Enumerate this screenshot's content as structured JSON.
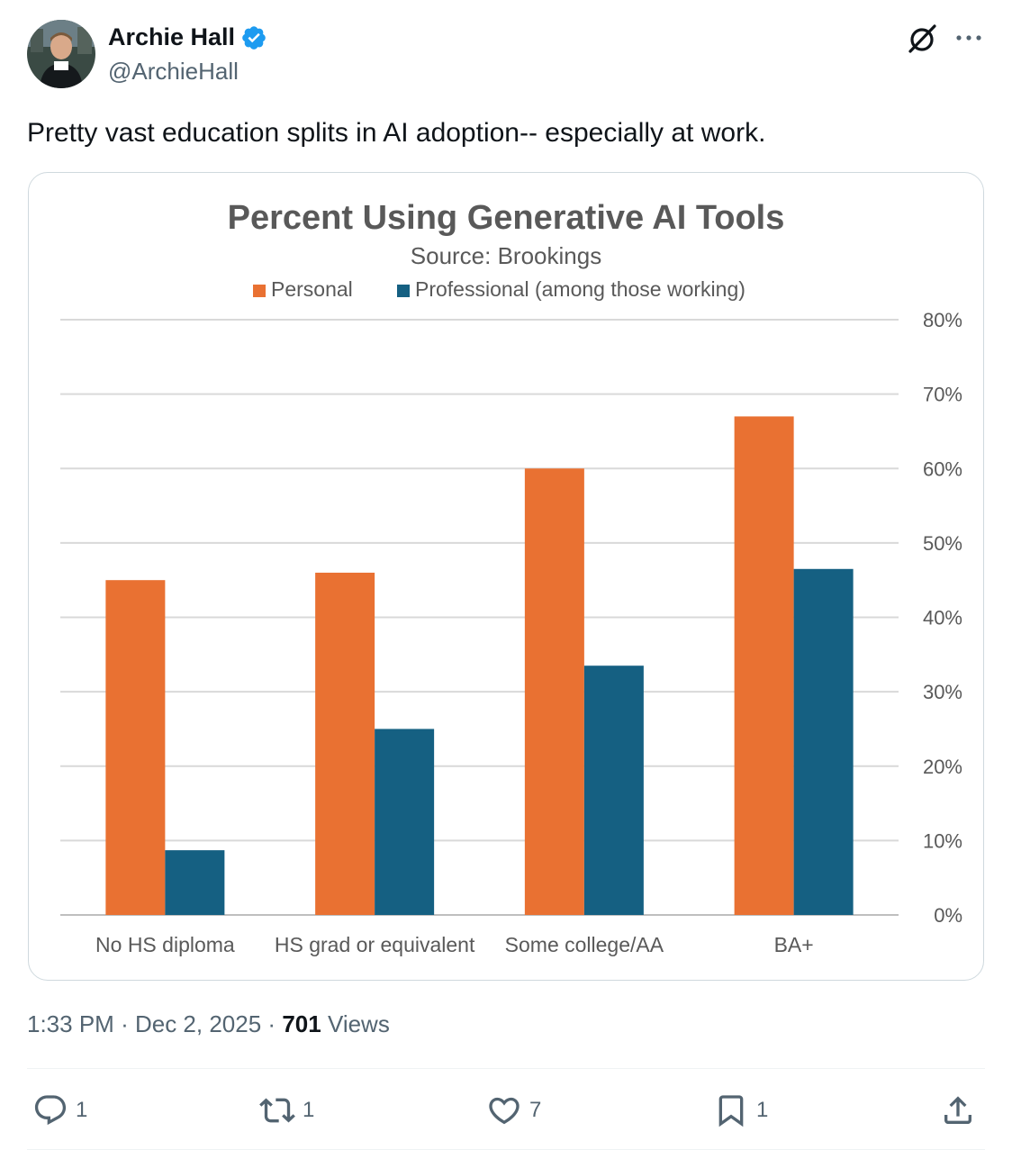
{
  "author": {
    "name": "Archie Hall",
    "handle": "@ArchieHall",
    "verified": true
  },
  "tweet": {
    "text": "Pretty vast education splits in AI adoption-- especially at work."
  },
  "meta": {
    "time": "1:33 PM",
    "separator": "·",
    "date": "Dec 2, 2025",
    "views_count": "701",
    "views_label": "Views"
  },
  "actions": {
    "replies": "1",
    "reposts": "1",
    "likes": "7",
    "bookmarks": "1"
  },
  "colors": {
    "personal": "#E97132",
    "professional": "#156082",
    "verified": "#1D9BF0",
    "muted": "#536471"
  },
  "chart_data": {
    "type": "bar",
    "title": "Percent Using Generative AI Tools",
    "subtitle": "Source: Brookings",
    "categories": [
      "No HS diploma",
      "HS grad or equivalent",
      "Some college/AA",
      "BA+"
    ],
    "series": [
      {
        "name": "Personal",
        "values": [
          45,
          46,
          60,
          67
        ]
      },
      {
        "name": "Professional (among those working)",
        "values": [
          8.7,
          25,
          33.5,
          46.5
        ]
      }
    ],
    "ylim": [
      0,
      80
    ],
    "yticks": [
      0,
      10,
      20,
      30,
      40,
      50,
      60,
      70,
      80
    ],
    "ytick_labels": [
      "0%",
      "10%",
      "20%",
      "30%",
      "40%",
      "50%",
      "60%",
      "70%",
      "80%"
    ],
    "y_axis_side": "right",
    "grid": true,
    "legend": "top-center",
    "xlabel": "",
    "ylabel": ""
  }
}
